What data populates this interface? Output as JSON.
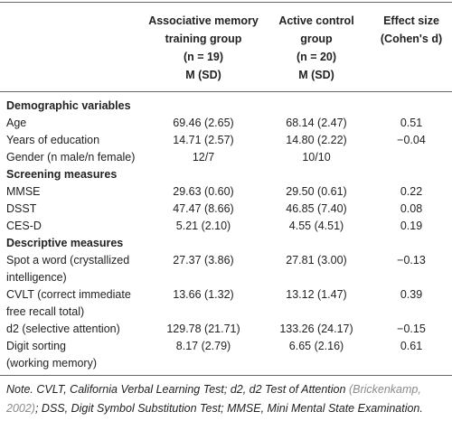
{
  "table": {
    "header": [
      {
        "lines": [
          "Associative memory",
          "training group",
          "(n = 19)",
          "M (SD)"
        ]
      },
      {
        "lines": [
          "Active control",
          "group",
          "(n = 20)",
          "M (SD)"
        ]
      },
      {
        "lines": [
          "Effect size",
          "(Cohen's d)"
        ]
      }
    ],
    "sections": [
      {
        "title": "Demographic variables",
        "rows": [
          {
            "label": [
              "Age"
            ],
            "cells": [
              "69.46 (2.65)",
              "68.14 (2.47)",
              "0.51"
            ]
          },
          {
            "label": [
              "Years of education"
            ],
            "cells": [
              "14.71 (2.57)",
              "14.80 (2.22)",
              "−0.04"
            ]
          },
          {
            "label": [
              "Gender (n male/n female)"
            ],
            "cells": [
              "12/7",
              "10/10"
            ]
          }
        ]
      },
      {
        "title": "Screening measures",
        "rows": [
          {
            "label": [
              "MMSE"
            ],
            "cells": [
              "29.63 (0.60)",
              "29.50 (0.61)",
              "0.22"
            ]
          },
          {
            "label": [
              "DSST"
            ],
            "cells": [
              "47.47 (8.66)",
              "46.85 (7.40)",
              "0.08"
            ]
          },
          {
            "label": [
              "CES-D"
            ],
            "cells": [
              "5.21 (2.10)",
              "4.55 (4.51)",
              "0.19"
            ]
          }
        ]
      },
      {
        "title": "Descriptive measures",
        "rows": [
          {
            "label": [
              "Spot a word (crystallized",
              "intelligence)"
            ],
            "cells": [
              "27.37 (3.86)",
              "27.81 (3.00)",
              "−0.13"
            ]
          },
          {
            "label": [
              "CVLT (correct immediate",
              "free recall total)"
            ],
            "cells": [
              "13.66 (1.32)",
              "13.12 (1.47)",
              "0.39"
            ]
          },
          {
            "label": [
              "d2 (selective attention)"
            ],
            "cells": [
              "129.78 (21.71)",
              "133.26 (24.17)",
              "−0.15"
            ]
          },
          {
            "label": [
              "Digit sorting",
              "(working memory)"
            ],
            "cells": [
              "8.17 (2.79)",
              "6.65 (2.16)",
              "0.61"
            ]
          }
        ]
      }
    ],
    "note": {
      "before": "Note. CVLT, California Verbal Learning Test; d2, d2 Test of Attention",
      "citation": "(Brickenkamp, 2002)",
      "after": "; DSS, Digit Symbol Substitution Test; MMSE, Mini Mental State Examination."
    }
  }
}
